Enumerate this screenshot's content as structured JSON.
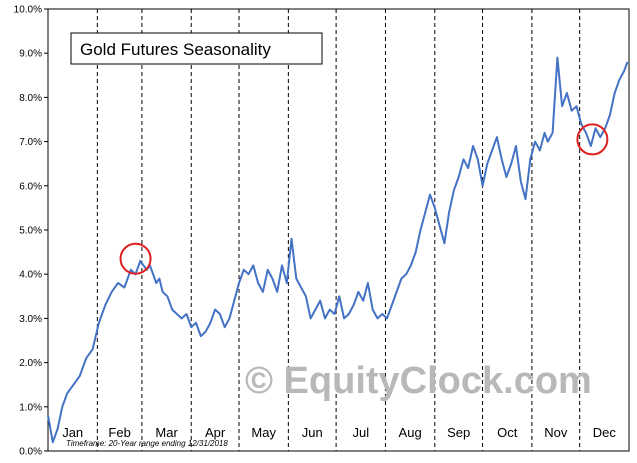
{
  "chart_data": {
    "type": "line",
    "title": "Gold Futures Seasonality",
    "watermark": "© EquityClock.com",
    "note": "Timeframe:  20-Year range ending 12/31/2018",
    "y_ticks": [
      "0.0%",
      "1.0%",
      "2.0%",
      "3.0%",
      "4.0%",
      "5.0%",
      "6.0%",
      "7.0%",
      "8.0%",
      "9.0%",
      "10.0%"
    ],
    "ylim": [
      0,
      10
    ],
    "x_ticks": [
      "Jan",
      "Feb",
      "Mar",
      "Apr",
      "May",
      "Jun",
      "Jul",
      "Aug",
      "Sep",
      "Oct",
      "Nov",
      "Dec"
    ],
    "xlim": [
      0,
      365
    ],
    "grid": "vertical dashed at month boundaries",
    "line_color": "#4472c4",
    "highlight_color": "#e02020",
    "series": [
      {
        "x": [
          0,
          3,
          6,
          9,
          12,
          16,
          20,
          24,
          28,
          32,
          36,
          40,
          44,
          48,
          52,
          55,
          58,
          60,
          62,
          64,
          66,
          68,
          70,
          72,
          75,
          78,
          81,
          84,
          87,
          90,
          93,
          96,
          99,
          102,
          105,
          108,
          111,
          114,
          117,
          120,
          123,
          126,
          129,
          132,
          135,
          138,
          141,
          144,
          147,
          150,
          153,
          156,
          159,
          162,
          165,
          168,
          171,
          174,
          177,
          180,
          183,
          186,
          189,
          192,
          195,
          198,
          201,
          204,
          207,
          210,
          213,
          216,
          219,
          222,
          225,
          228,
          231,
          234,
          237,
          240,
          243,
          246,
          249,
          252,
          255,
          258,
          261,
          264,
          267,
          270,
          273,
          276,
          279,
          282,
          285,
          288,
          291,
          294,
          297,
          300,
          303,
          306,
          309,
          312,
          314,
          317,
          320,
          323,
          326,
          329,
          332,
          335,
          338,
          341,
          344,
          347,
          350,
          353,
          356,
          359,
          362,
          364
        ],
        "y": [
          0.8,
          0.2,
          0.5,
          1.0,
          1.3,
          1.5,
          1.7,
          2.1,
          2.3,
          2.9,
          3.3,
          3.6,
          3.8,
          3.7,
          4.1,
          4.0,
          4.3,
          4.2,
          4.1,
          4.2,
          4.0,
          3.8,
          3.9,
          3.6,
          3.5,
          3.2,
          3.1,
          3.0,
          3.1,
          2.8,
          2.9,
          2.6,
          2.7,
          2.9,
          3.2,
          3.1,
          2.8,
          3.0,
          3.4,
          3.8,
          4.1,
          4.0,
          4.2,
          3.8,
          3.6,
          4.1,
          3.9,
          3.6,
          4.2,
          3.8,
          4.8,
          3.9,
          3.7,
          3.5,
          3.0,
          3.2,
          3.4,
          3.0,
          3.2,
          3.1,
          3.5,
          3.0,
          3.1,
          3.3,
          3.6,
          3.4,
          3.8,
          3.2,
          3.0,
          3.1,
          3.0,
          3.3,
          3.6,
          3.9,
          4.0,
          4.2,
          4.5,
          5.0,
          5.4,
          5.8,
          5.5,
          5.1,
          4.7,
          5.4,
          5.9,
          6.2,
          6.6,
          6.4,
          6.9,
          6.6,
          6.0,
          6.5,
          6.8,
          7.1,
          6.6,
          6.2,
          6.5,
          6.9,
          6.1,
          5.7,
          6.6,
          7.0,
          6.8,
          7.2,
          7.0,
          7.2,
          8.9,
          7.8,
          8.1,
          7.7,
          7.8,
          7.4,
          7.2,
          6.9,
          7.3,
          7.1,
          7.3,
          7.6,
          8.1,
          8.4,
          8.6,
          8.8
        ]
      }
    ],
    "annotations": [
      {
        "type": "circle",
        "x": 55,
        "y": 4.35
      },
      {
        "type": "circle",
        "x": 342,
        "y": 7.05
      }
    ]
  }
}
